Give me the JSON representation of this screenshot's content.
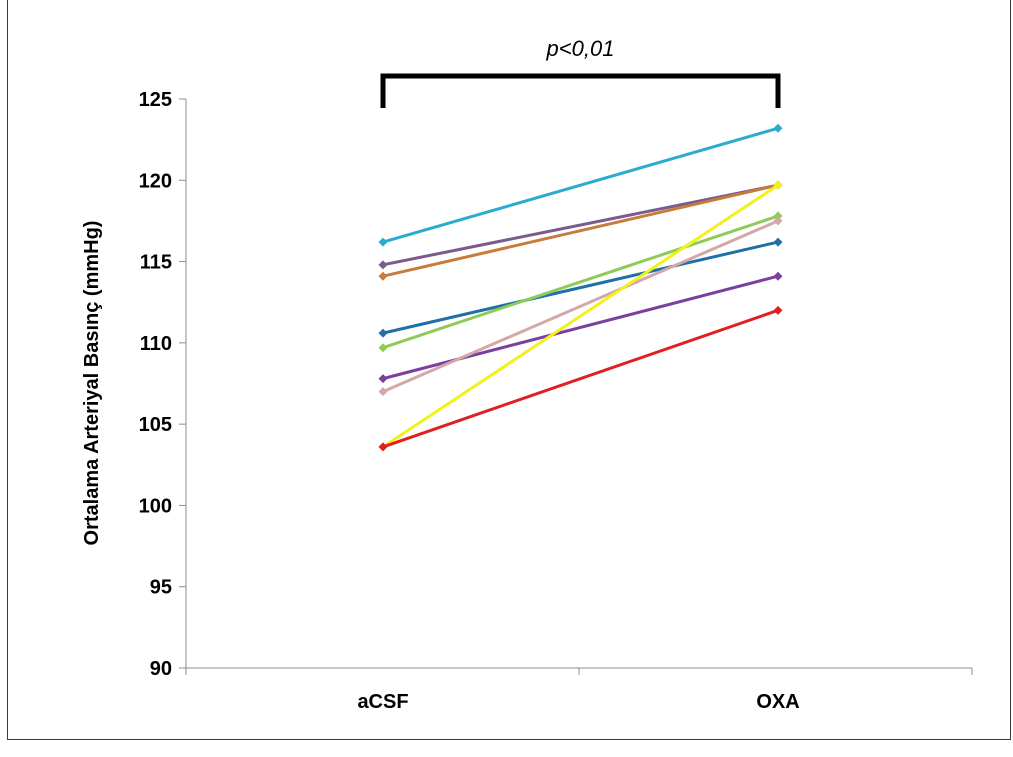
{
  "chart_data": {
    "type": "line",
    "title": "",
    "ylabel": "Ortalama Arteriyal Basınç (mmHg)",
    "xlabel": "",
    "categories": [
      "aCSF",
      "OXA"
    ],
    "ylim": [
      90,
      125
    ],
    "yticks": [
      90,
      95,
      100,
      105,
      110,
      115,
      120,
      125
    ],
    "grid": false,
    "legend": "none",
    "annotation": {
      "text": "p<0,01",
      "type": "significance-bracket",
      "from": "aCSF",
      "to": "OXA"
    },
    "series": [
      {
        "values": [
          116.2,
          123.2
        ],
        "color": "#2AACCF"
      },
      {
        "values": [
          114.8,
          119.7
        ],
        "color": "#7B5A8E"
      },
      {
        "values": [
          114.1,
          119.7
        ],
        "color": "#C87B3A"
      },
      {
        "values": [
          110.6,
          116.2
        ],
        "color": "#1F6FA8"
      },
      {
        "values": [
          109.7,
          117.8
        ],
        "color": "#8FCB57"
      },
      {
        "values": [
          107.8,
          114.1
        ],
        "color": "#7A3FA0"
      },
      {
        "values": [
          107.0,
          117.5
        ],
        "color": "#D4A8A8"
      },
      {
        "values": [
          103.6,
          119.7
        ],
        "color": "#F2F21A"
      },
      {
        "values": [
          103.6,
          112.0
        ],
        "color": "#E02020"
      }
    ]
  }
}
